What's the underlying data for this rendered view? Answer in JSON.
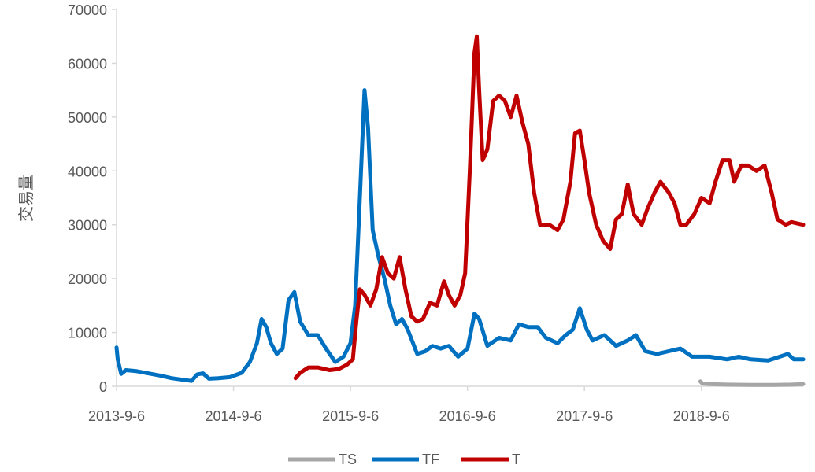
{
  "chart_data": {
    "type": "line",
    "ylabel": "交易量",
    "ylim": [
      0,
      70000
    ],
    "y_ticks": [
      "0",
      "10000",
      "20000",
      "30000",
      "40000",
      "50000",
      "60000",
      "70000"
    ],
    "x_tick_labels": [
      "2013-9-6",
      "2014-9-6",
      "2015-9-6",
      "2016-9-6",
      "2017-9-6",
      "2018-9-6"
    ],
    "x_range": [
      2013.68,
      2019.55
    ],
    "grid": false,
    "legend_position": "bottom",
    "series": [
      {
        "name": "TS",
        "color": "#a6a6a6",
        "points": [
          [
            2018.67,
            900
          ],
          [
            2018.69,
            500
          ],
          [
            2018.75,
            400
          ],
          [
            2018.9,
            300
          ],
          [
            2019.1,
            250
          ],
          [
            2019.3,
            250
          ],
          [
            2019.45,
            300
          ],
          [
            2019.55,
            400
          ]
        ]
      },
      {
        "name": "TF",
        "color": "#0070c0",
        "points": [
          [
            2013.68,
            7200
          ],
          [
            2013.69,
            5000
          ],
          [
            2013.72,
            2300
          ],
          [
            2013.76,
            3000
          ],
          [
            2013.85,
            2800
          ],
          [
            2013.95,
            2400
          ],
          [
            2014.05,
            2000
          ],
          [
            2014.15,
            1500
          ],
          [
            2014.25,
            1200
          ],
          [
            2014.32,
            1000
          ],
          [
            2014.37,
            2200
          ],
          [
            2014.42,
            2400
          ],
          [
            2014.47,
            1400
          ],
          [
            2014.55,
            1500
          ],
          [
            2014.65,
            1700
          ],
          [
            2014.75,
            2500
          ],
          [
            2014.82,
            4500
          ],
          [
            2014.88,
            8000
          ],
          [
            2014.92,
            12500
          ],
          [
            2014.96,
            11000
          ],
          [
            2015.0,
            8000
          ],
          [
            2015.05,
            6000
          ],
          [
            2015.1,
            7000
          ],
          [
            2015.15,
            16000
          ],
          [
            2015.2,
            17500
          ],
          [
            2015.25,
            12000
          ],
          [
            2015.32,
            9500
          ],
          [
            2015.4,
            9500
          ],
          [
            2015.47,
            7000
          ],
          [
            2015.55,
            4500
          ],
          [
            2015.62,
            5500
          ],
          [
            2015.68,
            8000
          ],
          [
            2015.72,
            15000
          ],
          [
            2015.76,
            35000
          ],
          [
            2015.8,
            55000
          ],
          [
            2015.83,
            48000
          ],
          [
            2015.87,
            29000
          ],
          [
            2015.92,
            24000
          ],
          [
            2015.97,
            20000
          ],
          [
            2016.02,
            15000
          ],
          [
            2016.07,
            11500
          ],
          [
            2016.12,
            12500
          ],
          [
            2016.17,
            10500
          ],
          [
            2016.25,
            6000
          ],
          [
            2016.32,
            6500
          ],
          [
            2016.38,
            7500
          ],
          [
            2016.45,
            7000
          ],
          [
            2016.52,
            7500
          ],
          [
            2016.6,
            5500
          ],
          [
            2016.68,
            7000
          ],
          [
            2016.74,
            13500
          ],
          [
            2016.78,
            12500
          ],
          [
            2016.85,
            7500
          ],
          [
            2016.95,
            9000
          ],
          [
            2017.05,
            8500
          ],
          [
            2017.12,
            11500
          ],
          [
            2017.2,
            11000
          ],
          [
            2017.28,
            11000
          ],
          [
            2017.35,
            9000
          ],
          [
            2017.45,
            8000
          ],
          [
            2017.52,
            9500
          ],
          [
            2017.58,
            10500
          ],
          [
            2017.64,
            14500
          ],
          [
            2017.7,
            10500
          ],
          [
            2017.75,
            8500
          ],
          [
            2017.85,
            9500
          ],
          [
            2017.95,
            7500
          ],
          [
            2018.05,
            8500
          ],
          [
            2018.12,
            9500
          ],
          [
            2018.2,
            6500
          ],
          [
            2018.3,
            6000
          ],
          [
            2018.4,
            6500
          ],
          [
            2018.5,
            7000
          ],
          [
            2018.6,
            5500
          ],
          [
            2018.75,
            5500
          ],
          [
            2018.9,
            5000
          ],
          [
            2019.0,
            5500
          ],
          [
            2019.1,
            5000
          ],
          [
            2019.25,
            4800
          ],
          [
            2019.35,
            5500
          ],
          [
            2019.42,
            6000
          ],
          [
            2019.47,
            5000
          ],
          [
            2019.55,
            5000
          ]
        ]
      },
      {
        "name": "T",
        "color": "#c00000",
        "points": [
          [
            2015.21,
            1500
          ],
          [
            2015.25,
            2500
          ],
          [
            2015.32,
            3500
          ],
          [
            2015.4,
            3500
          ],
          [
            2015.5,
            3000
          ],
          [
            2015.58,
            3200
          ],
          [
            2015.65,
            4000
          ],
          [
            2015.7,
            5000
          ],
          [
            2015.73,
            12000
          ],
          [
            2015.76,
            18000
          ],
          [
            2015.8,
            17000
          ],
          [
            2015.85,
            15000
          ],
          [
            2015.9,
            18000
          ],
          [
            2015.95,
            24000
          ],
          [
            2016.0,
            21000
          ],
          [
            2016.05,
            20000
          ],
          [
            2016.1,
            24000
          ],
          [
            2016.15,
            18000
          ],
          [
            2016.2,
            13000
          ],
          [
            2016.25,
            12000
          ],
          [
            2016.3,
            12500
          ],
          [
            2016.36,
            15500
          ],
          [
            2016.42,
            15000
          ],
          [
            2016.48,
            19500
          ],
          [
            2016.52,
            17000
          ],
          [
            2016.57,
            15000
          ],
          [
            2016.62,
            17000
          ],
          [
            2016.66,
            21000
          ],
          [
            2016.7,
            40000
          ],
          [
            2016.74,
            62000
          ],
          [
            2016.76,
            65000
          ],
          [
            2016.78,
            55000
          ],
          [
            2016.81,
            42000
          ],
          [
            2016.85,
            44000
          ],
          [
            2016.9,
            53000
          ],
          [
            2016.95,
            54000
          ],
          [
            2017.0,
            53000
          ],
          [
            2017.05,
            50000
          ],
          [
            2017.1,
            54000
          ],
          [
            2017.15,
            49000
          ],
          [
            2017.2,
            45000
          ],
          [
            2017.25,
            36000
          ],
          [
            2017.3,
            30000
          ],
          [
            2017.38,
            30000
          ],
          [
            2017.45,
            29000
          ],
          [
            2017.5,
            31000
          ],
          [
            2017.56,
            38000
          ],
          [
            2017.6,
            47000
          ],
          [
            2017.64,
            47500
          ],
          [
            2017.68,
            42000
          ],
          [
            2017.72,
            36000
          ],
          [
            2017.78,
            30000
          ],
          [
            2017.84,
            27000
          ],
          [
            2017.9,
            25500
          ],
          [
            2017.95,
            31000
          ],
          [
            2018.0,
            32000
          ],
          [
            2018.05,
            37500
          ],
          [
            2018.1,
            32000
          ],
          [
            2018.17,
            30000
          ],
          [
            2018.22,
            33000
          ],
          [
            2018.28,
            36000
          ],
          [
            2018.33,
            38000
          ],
          [
            2018.4,
            36000
          ],
          [
            2018.45,
            34000
          ],
          [
            2018.5,
            30000
          ],
          [
            2018.55,
            30000
          ],
          [
            2018.62,
            32000
          ],
          [
            2018.68,
            35000
          ],
          [
            2018.75,
            34000
          ],
          [
            2018.8,
            38000
          ],
          [
            2018.86,
            42000
          ],
          [
            2018.92,
            42000
          ],
          [
            2018.96,
            38000
          ],
          [
            2019.02,
            41000
          ],
          [
            2019.08,
            41000
          ],
          [
            2019.15,
            40000
          ],
          [
            2019.22,
            41000
          ],
          [
            2019.28,
            36000
          ],
          [
            2019.33,
            31000
          ],
          [
            2019.4,
            30000
          ],
          [
            2019.45,
            30500
          ],
          [
            2019.55,
            30000
          ]
        ]
      }
    ]
  }
}
